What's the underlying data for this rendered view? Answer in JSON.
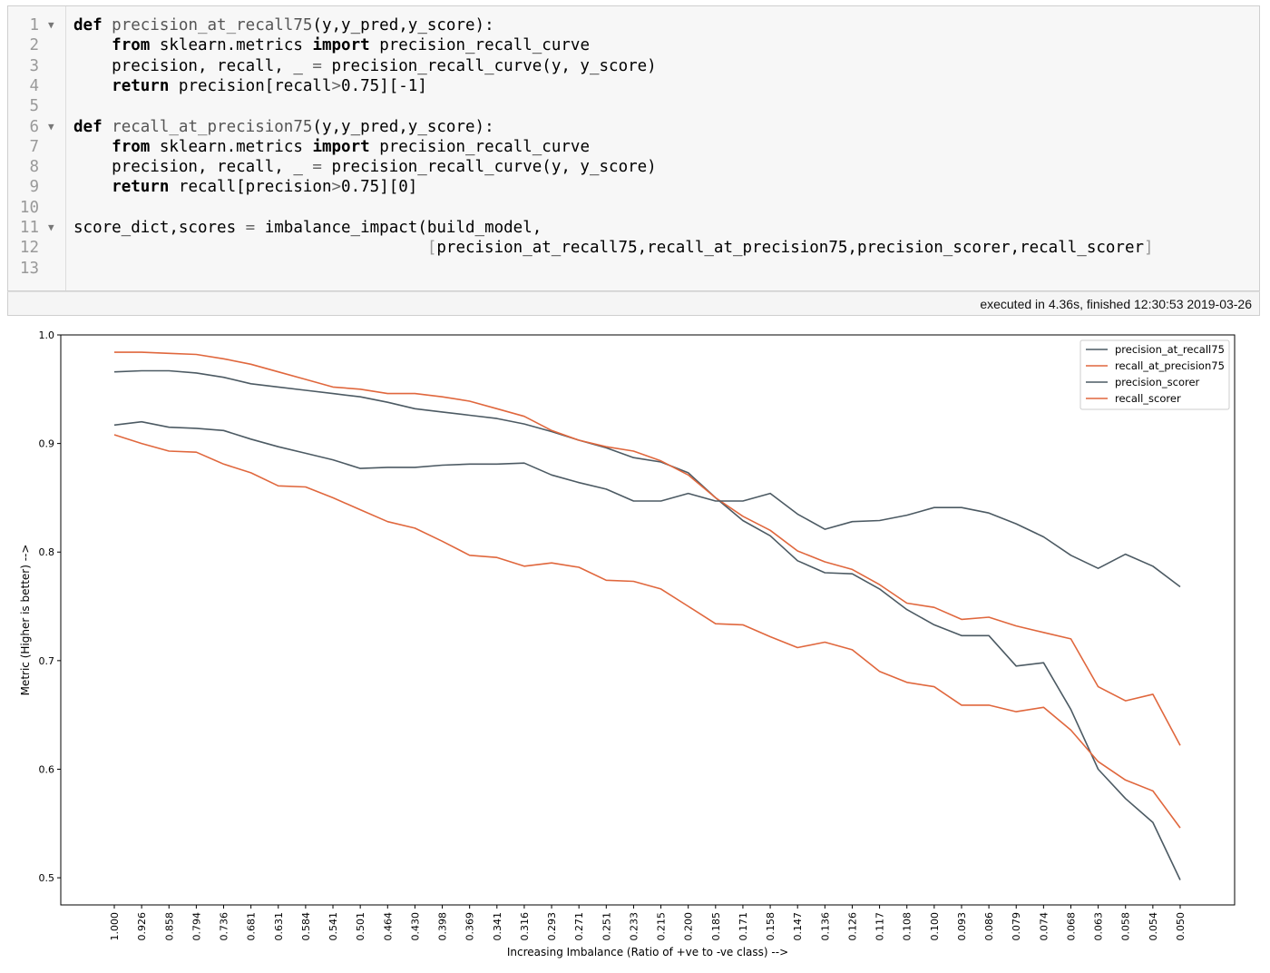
{
  "code_lines": [
    {
      "n": "1",
      "fold": true,
      "tokens": [
        [
          "kw",
          "def"
        ],
        [
          "t",
          " "
        ],
        [
          "fn",
          "precision_at_recall75"
        ],
        [
          "t",
          "(y,y_pred,y_score):"
        ]
      ]
    },
    {
      "n": "2",
      "fold": false,
      "tokens": [
        [
          "t",
          "    "
        ],
        [
          "kw",
          "from"
        ],
        [
          "t",
          " sklearn.metrics "
        ],
        [
          "kw",
          "import"
        ],
        [
          "t",
          " precision_recall_curve"
        ]
      ]
    },
    {
      "n": "3",
      "fold": false,
      "tokens": [
        [
          "t",
          "    precision, recall, _ "
        ],
        [
          "op",
          "="
        ],
        [
          "t",
          " precision_recall_curve(y, y_score)"
        ]
      ]
    },
    {
      "n": "4",
      "fold": false,
      "tokens": [
        [
          "t",
          "    "
        ],
        [
          "kw",
          "return"
        ],
        [
          "t",
          " precision[recall"
        ],
        [
          "op",
          ">"
        ],
        [
          "t",
          "0.75][-1]"
        ]
      ]
    },
    {
      "n": "5",
      "fold": false,
      "tokens": []
    },
    {
      "n": "6",
      "fold": true,
      "tokens": [
        [
          "kw",
          "def"
        ],
        [
          "t",
          " "
        ],
        [
          "fn",
          "recall_at_precision75"
        ],
        [
          "t",
          "(y,y_pred,y_score):"
        ]
      ]
    },
    {
      "n": "7",
      "fold": false,
      "tokens": [
        [
          "t",
          "    "
        ],
        [
          "kw",
          "from"
        ],
        [
          "t",
          " sklearn.metrics "
        ],
        [
          "kw",
          "import"
        ],
        [
          "t",
          " precision_recall_curve"
        ]
      ]
    },
    {
      "n": "8",
      "fold": false,
      "tokens": [
        [
          "t",
          "    precision, recall, _ "
        ],
        [
          "op",
          "="
        ],
        [
          "t",
          " precision_recall_curve(y, y_score)"
        ]
      ]
    },
    {
      "n": "9",
      "fold": false,
      "tokens": [
        [
          "t",
          "    "
        ],
        [
          "kw",
          "return"
        ],
        [
          "t",
          " recall[precision"
        ],
        [
          "op",
          ">"
        ],
        [
          "t",
          "0.75][0]"
        ]
      ]
    },
    {
      "n": "10",
      "fold": false,
      "tokens": []
    },
    {
      "n": "11",
      "fold": true,
      "tokens": [
        [
          "t",
          "score_dict,scores "
        ],
        [
          "op",
          "="
        ],
        [
          "t",
          " imbalance_impact(build_model,"
        ]
      ]
    },
    {
      "n": "12",
      "fold": false,
      "tokens": [
        [
          "t",
          "                                     "
        ],
        [
          "br",
          "["
        ],
        [
          "t",
          "precision_at_recall75,recall_at_precision75,precision_scorer,recall_scorer"
        ],
        [
          "br",
          "]"
        ]
      ]
    },
    {
      "n": "13",
      "fold": false,
      "tokens": []
    }
  ],
  "execution_status": "executed in 4.36s, finished 12:30:53 2019-03-26",
  "chart_data": {
    "type": "line",
    "xlabel": "Increasing Imbalance (Ratio of +ve to -ve class) -->",
    "ylabel": "Metric (Higher is better) -->",
    "categories": [
      "1.000",
      "0.926",
      "0.858",
      "0.794",
      "0.736",
      "0.681",
      "0.631",
      "0.584",
      "0.541",
      "0.501",
      "0.464",
      "0.430",
      "0.398",
      "0.369",
      "0.341",
      "0.316",
      "0.293",
      "0.271",
      "0.251",
      "0.233",
      "0.215",
      "0.200",
      "0.185",
      "0.171",
      "0.158",
      "0.147",
      "0.136",
      "0.126",
      "0.117",
      "0.108",
      "0.100",
      "0.093",
      "0.086",
      "0.079",
      "0.074",
      "0.068",
      "0.063",
      "0.058",
      "0.054",
      "0.050"
    ],
    "ylim": [
      0.475,
      1.0
    ],
    "yticks": [
      "0.5",
      "0.6",
      "0.7",
      "0.8",
      "0.9",
      "1.0"
    ],
    "grid": false,
    "legend_position": "top-right",
    "series": [
      {
        "name": "precision_at_recall75",
        "color": "#4c5a63",
        "values": [
          0.966,
          0.967,
          0.967,
          0.965,
          0.961,
          0.955,
          0.952,
          0.949,
          0.946,
          0.943,
          0.938,
          0.932,
          0.929,
          0.926,
          0.923,
          0.918,
          0.911,
          0.903,
          0.896,
          0.887,
          0.883,
          0.873,
          0.85,
          0.829,
          0.815,
          0.792,
          0.781,
          0.78,
          0.766,
          0.747,
          0.733,
          0.723,
          0.723,
          0.695,
          0.698,
          0.655,
          0.6,
          0.573,
          0.551,
          0.498
        ]
      },
      {
        "name": "recall_at_precision75",
        "color": "#e0673d",
        "values": [
          0.984,
          0.984,
          0.983,
          0.982,
          0.978,
          0.973,
          0.966,
          0.959,
          0.952,
          0.95,
          0.946,
          0.946,
          0.943,
          0.939,
          0.932,
          0.925,
          0.912,
          0.903,
          0.897,
          0.893,
          0.884,
          0.871,
          0.85,
          0.833,
          0.82,
          0.801,
          0.791,
          0.784,
          0.77,
          0.753,
          0.749,
          0.738,
          0.74,
          0.732,
          0.726,
          0.72,
          0.676,
          0.663,
          0.669,
          0.622
        ]
      },
      {
        "name": "precision_scorer",
        "color": "#4c5a63",
        "values": [
          0.917,
          0.92,
          0.915,
          0.914,
          0.912,
          0.904,
          0.897,
          0.891,
          0.885,
          0.877,
          0.878,
          0.878,
          0.88,
          0.881,
          0.881,
          0.882,
          0.871,
          0.864,
          0.858,
          0.847,
          0.847,
          0.854,
          0.847,
          0.847,
          0.854,
          0.835,
          0.821,
          0.828,
          0.829,
          0.834,
          0.841,
          0.841,
          0.836,
          0.826,
          0.814,
          0.797,
          0.785,
          0.798,
          0.787,
          0.768
        ]
      },
      {
        "name": "recall_scorer",
        "color": "#e0673d",
        "values": [
          0.908,
          0.9,
          0.893,
          0.892,
          0.881,
          0.873,
          0.861,
          0.86,
          0.85,
          0.839,
          0.828,
          0.822,
          0.81,
          0.797,
          0.795,
          0.787,
          0.79,
          0.786,
          0.774,
          0.773,
          0.766,
          0.75,
          0.734,
          0.733,
          0.722,
          0.712,
          0.717,
          0.71,
          0.69,
          0.68,
          0.676,
          0.659,
          0.659,
          0.653,
          0.657,
          0.636,
          0.607,
          0.59,
          0.58,
          0.546
        ]
      }
    ]
  }
}
